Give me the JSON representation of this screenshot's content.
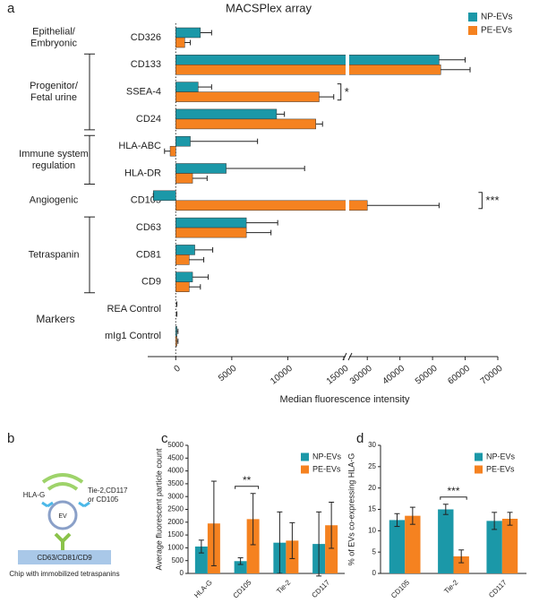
{
  "panel_labels": [
    "a",
    "b",
    "c",
    "d"
  ],
  "chart_data": [
    {
      "type": "bar",
      "orientation": "horizontal",
      "title": "MACSPlex array",
      "xlabel": "Median fluorescence intensity",
      "ylabel": "Markers",
      "categories": [
        "CD326",
        "CD133",
        "SSEA-4",
        "CD24",
        "HLA-ABC",
        "HLA-DR",
        "CD105",
        "CD63",
        "CD81",
        "CD9",
        "REA Control",
        "mIg1 Control"
      ],
      "series": [
        {
          "name": "NP-EVs",
          "color": "#1b98a8",
          "values": [
            2200,
            52000,
            2000,
            9000,
            1300,
            4500,
            -2000,
            6300,
            1700,
            1500,
            0,
            100
          ],
          "errors": [
            1000,
            8000,
            1200,
            700,
            6000,
            7000,
            0,
            2800,
            1600,
            1400,
            100,
            100
          ]
        },
        {
          "name": "PE-EVs",
          "color": "#f58220",
          "values": [
            800,
            52500,
            12800,
            12500,
            -500,
            1500,
            30000,
            6300,
            1200,
            1200,
            0,
            100
          ],
          "errors": [
            500,
            9000,
            1300,
            600,
            500,
            1300,
            22000,
            2200,
            1300,
            1000,
            100,
            100
          ]
        }
      ],
      "xlim": [
        -2500,
        70000
      ],
      "xbreak": [
        15000,
        25000
      ],
      "xticks": [
        0,
        5000,
        10000,
        15000,
        30000,
        40000,
        50000,
        60000,
        70000
      ],
      "groups": [
        {
          "label": [
            "Epithelial/",
            "Embryonic"
          ],
          "from": "CD326",
          "to": "CD326",
          "bracket": false
        },
        {
          "label": [
            "Progenitor/",
            "Fetal urine"
          ],
          "from": "CD133",
          "to": "CD24",
          "bracket": true
        },
        {
          "label": [
            "Immune system",
            "regulation"
          ],
          "from": "HLA-ABC",
          "to": "HLA-DR",
          "bracket": true
        },
        {
          "label": [
            "Angiogenic"
          ],
          "from": "CD105",
          "to": "CD105",
          "bracket": false
        },
        {
          "label": [
            "Tetraspanin"
          ],
          "from": "CD63",
          "to": "CD9",
          "bracket": true
        }
      ],
      "significance": [
        {
          "label": "*",
          "category": "SSEA-4"
        },
        {
          "label": "***",
          "category": "CD105"
        }
      ],
      "legend": "upper right"
    },
    {
      "type": "bar",
      "ylabel": "Average fluorescent particle count",
      "categories": [
        "HLA-G",
        "CD105",
        "Tie-2",
        "CD117"
      ],
      "series": [
        {
          "name": "NP-EVs",
          "color": "#1b98a8",
          "values": [
            1050,
            480,
            1200,
            1150
          ],
          "errors": [
            250,
            130,
            1200,
            1250
          ]
        },
        {
          "name": "PE-EVs",
          "color": "#f58220",
          "values": [
            1950,
            2120,
            1280,
            1880
          ],
          "errors": [
            1650,
            1000,
            700,
            900
          ]
        }
      ],
      "ylim": [
        0,
        5000
      ],
      "yticks": [
        0,
        500,
        1000,
        1500,
        2000,
        2500,
        3000,
        3500,
        4000,
        4500,
        5000
      ],
      "significance": [
        {
          "label": "**",
          "category": "CD105"
        }
      ],
      "legend": "upper right"
    },
    {
      "type": "bar",
      "ylabel": "% of EVs co-expressing HLA-G",
      "categories": [
        "CD105",
        "Tie-2",
        "CD117"
      ],
      "series": [
        {
          "name": "NP-EVs",
          "color": "#1b98a8",
          "values": [
            12.5,
            15,
            12.3
          ],
          "errors": [
            1.5,
            1.2,
            2
          ]
        },
        {
          "name": "PE-EVs",
          "color": "#f58220",
          "values": [
            13.5,
            4,
            12.8
          ],
          "errors": [
            2,
            1.5,
            1.5
          ]
        }
      ],
      "ylim": [
        0,
        30
      ],
      "yticks": [
        0,
        5,
        10,
        15,
        20,
        25,
        30
      ],
      "significance": [
        {
          "label": "***",
          "category": "Tie-2"
        }
      ],
      "legend": "upper right"
    }
  ],
  "diagram": {
    "receptor_left": "HLA-G",
    "receptor_right": [
      "Tie-2,CD117",
      "or CD105"
    ],
    "vesicle": "EV",
    "capture": "CD63/CD81/CD9",
    "caption": "Chip with immobilized tetraspanins"
  }
}
